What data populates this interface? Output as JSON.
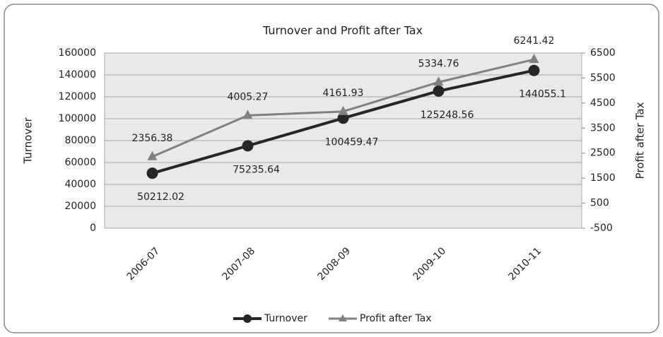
{
  "chart_data": {
    "type": "line",
    "title": "Turnover and Profit after Tax",
    "ylabel": "Turnover",
    "y2label": "Profit after Tax",
    "categories": [
      "2006-07",
      "2007-08",
      "2008-09",
      "2009-10",
      "2010-11"
    ],
    "series": [
      {
        "name": "Turnover",
        "color": "#262626",
        "values": [
          50212.02,
          75235.64,
          100459.47,
          125248.56,
          144055.1
        ]
      },
      {
        "name": "Profit after Tax",
        "color": "#808080",
        "axis": "y2",
        "values": [
          2356.38,
          4005.27,
          4161.93,
          5334.76,
          6241.42
        ]
      }
    ],
    "ylim": [
      0,
      160000
    ],
    "yticks": [
      0,
      20000,
      40000,
      60000,
      80000,
      100000,
      120000,
      140000,
      160000
    ],
    "y2lim": [
      -500,
      6500
    ],
    "y2ticks": [
      -500,
      500,
      1500,
      2500,
      3500,
      4500,
      5500,
      6500
    ],
    "grid": true,
    "legend": "bottom"
  }
}
